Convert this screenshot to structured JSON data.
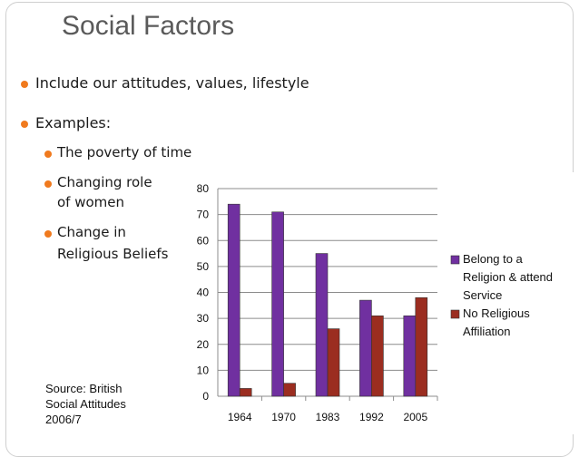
{
  "slide": {
    "title": "Social Factors",
    "bullets": [
      {
        "text": "Include our attitudes, values, lifestyle",
        "level": 1
      },
      {
        "text": "Examples:",
        "level": 1
      },
      {
        "text": "The poverty of time",
        "level": 2
      },
      {
        "text": "Changing role",
        "level": 2
      },
      {
        "text": "of women",
        "level": 2
      },
      {
        "text": "Change in",
        "level": 2
      },
      {
        "text": "Religious Beliefs",
        "level": 2
      }
    ],
    "source": "Source: British\nSocial Attitudes\n2006/7",
    "bullet_color": "#f07a1e"
  },
  "chart_data": {
    "type": "bar",
    "categories": [
      "1964",
      "1970",
      "1983",
      "1992",
      "2005"
    ],
    "series": [
      {
        "name": "Belong to a Religion & attend Service",
        "legend_lines": [
          "Belong to a",
          "Religion & attend",
          "Service"
        ],
        "color": "#7030a0",
        "values": [
          74,
          71,
          55,
          37,
          31
        ]
      },
      {
        "name": "No Religious Affiliation",
        "legend_lines": [
          "No Religious",
          "Affiliation"
        ],
        "color": "#9b2d20",
        "values": [
          3,
          5,
          26,
          31,
          38
        ]
      }
    ],
    "y_ticks": [
      "0",
      "10",
      "20",
      "30",
      "40",
      "50",
      "60",
      "70",
      "80"
    ],
    "ylim": [
      0,
      80
    ],
    "grid": true,
    "legend_position": "right"
  }
}
